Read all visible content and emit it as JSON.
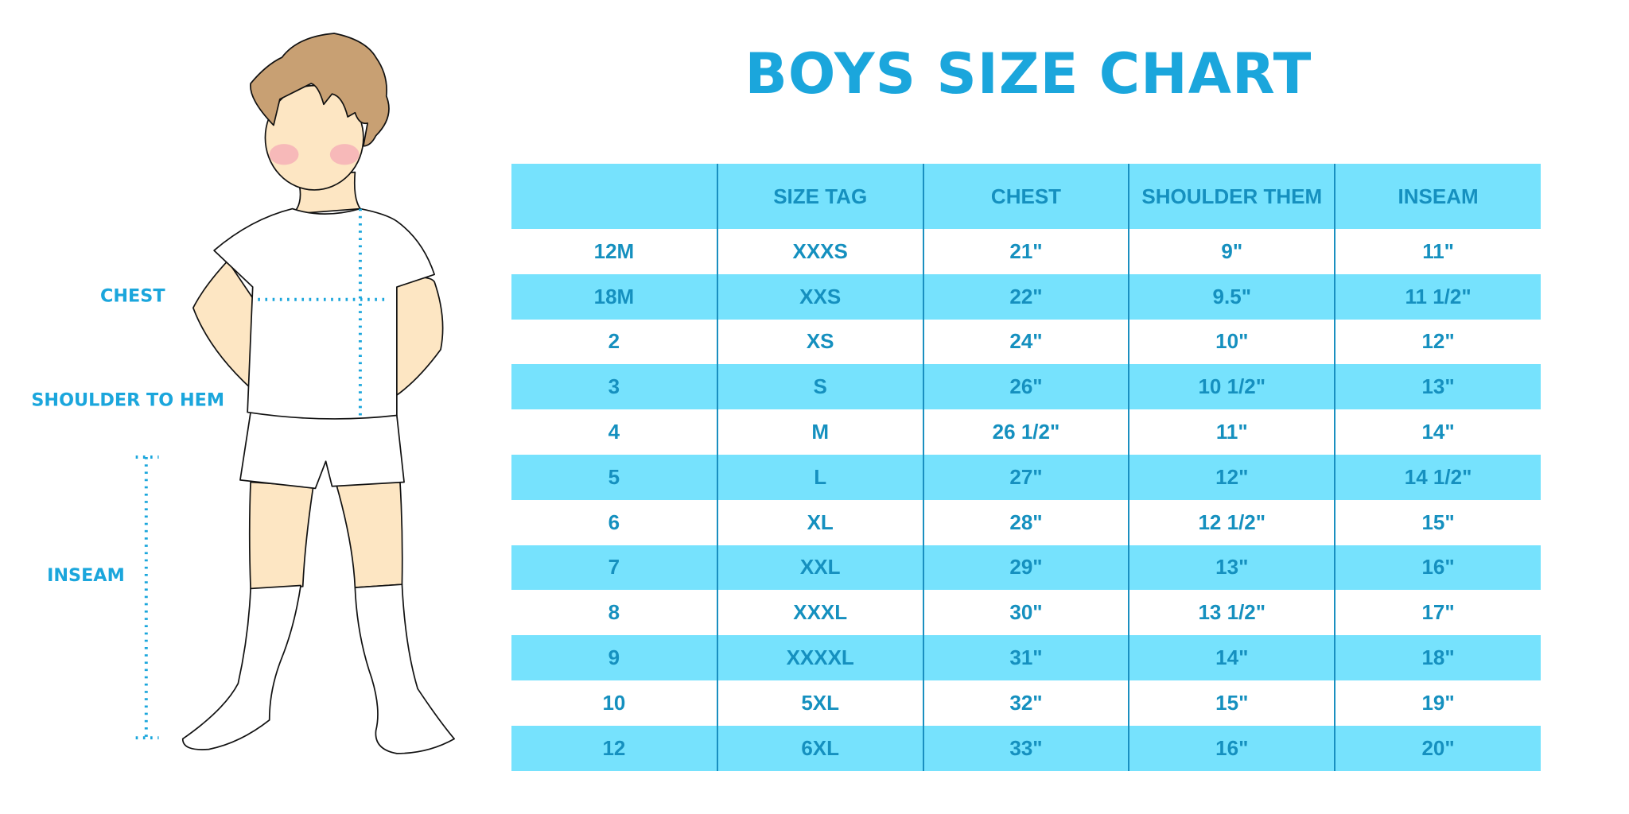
{
  "title": "BOYS SIZE CHART",
  "figure": {
    "labels": {
      "chest": "CHEST",
      "shoulder_to_hem": "SHOULDER TO HEM",
      "inseam": "INSEAM"
    }
  },
  "colors": {
    "accent": "#1ba6dc",
    "row_fill": "#76e2fd",
    "table_text": "#1590bf"
  },
  "table": {
    "headers": [
      "",
      "SIZE TAG",
      "CHEST",
      "SHOULDER THEM",
      "INSEAM"
    ],
    "rows": [
      [
        "12M",
        "XXXS",
        "21\"",
        "9\"",
        "11\""
      ],
      [
        "18M",
        "XXS",
        "22\"",
        "9.5\"",
        "11 1/2\""
      ],
      [
        "2",
        "XS",
        "24\"",
        "10\"",
        "12\""
      ],
      [
        "3",
        "S",
        "26\"",
        "10 1/2\"",
        "13\""
      ],
      [
        "4",
        "M",
        "26 1/2\"",
        "11\"",
        "14\""
      ],
      [
        "5",
        "L",
        "27\"",
        "12\"",
        "14 1/2\""
      ],
      [
        "6",
        "XL",
        "28\"",
        "12 1/2\"",
        "15\""
      ],
      [
        "7",
        "XXL",
        "29\"",
        "13\"",
        "16\""
      ],
      [
        "8",
        "XXXL",
        "30\"",
        "13 1/2\"",
        "17\""
      ],
      [
        "9",
        "XXXXL",
        "31\"",
        "14\"",
        "18\""
      ],
      [
        "10",
        "5XL",
        "32\"",
        "15\"",
        "19\""
      ],
      [
        "12",
        "6XL",
        "33\"",
        "16\"",
        "20\""
      ]
    ]
  }
}
